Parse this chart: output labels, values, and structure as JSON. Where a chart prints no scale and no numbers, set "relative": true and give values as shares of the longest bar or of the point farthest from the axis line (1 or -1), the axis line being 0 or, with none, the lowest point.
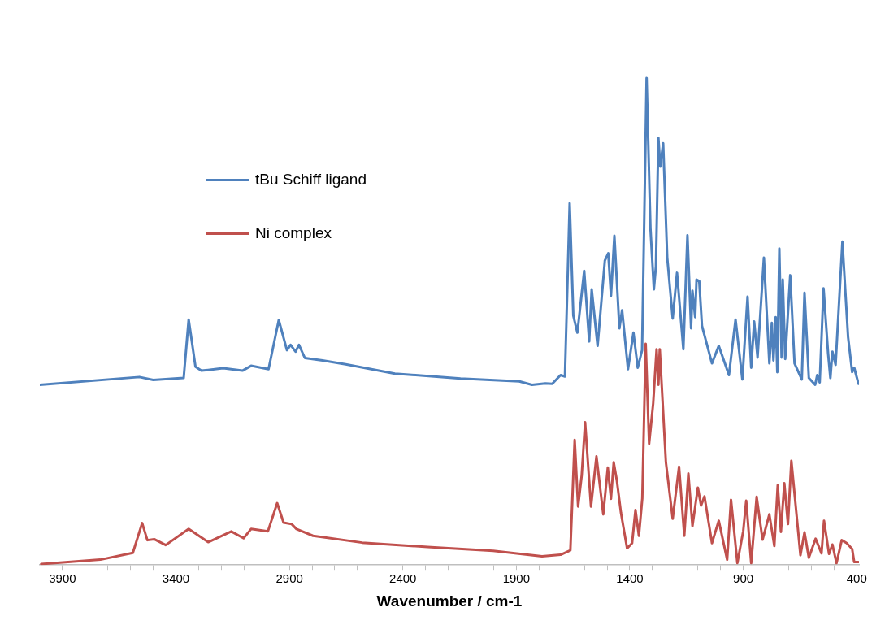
{
  "chart_data": {
    "type": "line",
    "xlabel": "Wavenumber / cm-1",
    "relative": true,
    "legend": "top left",
    "grid": false,
    "marker": "none",
    "line_style": "solid",
    "xlim": [
      4000,
      390
    ],
    "xticks": [
      3900,
      {
        "value": 3800,
        "label": null
      },
      {
        "value": 3700,
        "label": null
      },
      {
        "value": 3600,
        "label": null
      },
      {
        "value": 3500,
        "label": null
      },
      3400,
      {
        "value": 3300,
        "label": null
      },
      {
        "value": 3200,
        "label": null
      },
      {
        "value": 3100,
        "label": null
      },
      {
        "value": 3000,
        "label": null
      },
      2900,
      {
        "value": 2800,
        "label": null
      },
      {
        "value": 2700,
        "label": null
      },
      {
        "value": 2600,
        "label": null
      },
      {
        "value": 2500,
        "label": null
      },
      2400,
      {
        "value": 2300,
        "label": null
      },
      {
        "value": 2200,
        "label": null
      },
      {
        "value": 2100,
        "label": null
      },
      {
        "value": 2000,
        "label": null
      },
      1900,
      {
        "value": 1800,
        "label": null
      },
      {
        "value": 1700,
        "label": null
      },
      {
        "value": 1600,
        "label": null
      },
      {
        "value": 1500,
        "label": null
      },
      1400,
      {
        "value": 1300,
        "label": null
      },
      {
        "value": 1200,
        "label": null
      },
      {
        "value": 1100,
        "label": null
      },
      {
        "value": 1000,
        "label": null
      },
      900,
      {
        "value": 800,
        "label": null
      },
      {
        "value": 700,
        "label": null
      },
      {
        "value": 600,
        "label": null
      },
      {
        "value": 500,
        "label": null
      },
      400
    ],
    "series": [
      {
        "name": "tBu Schiff ligand",
        "color": "#4f81bd",
        "x": [
          4000,
          3561,
          3500,
          3366,
          3344,
          3314,
          3288,
          3192,
          3107,
          3069,
          2992,
          2947,
          2911,
          2895,
          2873,
          2858,
          2832,
          2754,
          2652,
          2435,
          2146,
          1887,
          1831,
          1772,
          1742,
          1705,
          1686,
          1665,
          1649,
          1631,
          1601,
          1579,
          1568,
          1542,
          1510,
          1495,
          1483,
          1468,
          1446,
          1434,
          1408,
          1384,
          1365,
          1346,
          1326,
          1309,
          1294,
          1285,
          1274,
          1266,
          1253,
          1235,
          1211,
          1192,
          1164,
          1146,
          1130,
          1124,
          1112,
          1106,
          1094,
          1082,
          1038,
          1008,
          963,
          934,
          904,
          881,
          865,
          852,
          837,
          809,
          785,
          774,
          767,
          757,
          750,
          741,
          731,
          726,
          715,
          693,
          674,
          642,
          630,
          611,
          583,
          574,
          563,
          546,
          526,
          516,
          507,
          493,
          463,
          438,
          420,
          411,
          392
        ],
        "values": [
          0.37,
          0.386,
          0.38,
          0.384,
          0.504,
          0.407,
          0.399,
          0.404,
          0.399,
          0.409,
          0.402,
          0.503,
          0.441,
          0.452,
          0.438,
          0.452,
          0.425,
          0.42,
          0.412,
          0.393,
          0.383,
          0.377,
          0.37,
          0.373,
          0.372,
          0.39,
          0.387,
          0.743,
          0.512,
          0.477,
          0.604,
          0.459,
          0.566,
          0.45,
          0.625,
          0.64,
          0.553,
          0.676,
          0.486,
          0.523,
          0.402,
          0.477,
          0.405,
          0.441,
          1.0,
          0.691,
          0.566,
          0.613,
          0.877,
          0.818,
          0.866,
          0.631,
          0.506,
          0.6,
          0.443,
          0.677,
          0.486,
          0.563,
          0.509,
          0.586,
          0.583,
          0.491,
          0.414,
          0.45,
          0.39,
          0.504,
          0.381,
          0.551,
          0.405,
          0.5,
          0.426,
          0.631,
          0.414,
          0.497,
          0.42,
          0.509,
          0.396,
          0.65,
          0.426,
          0.586,
          0.423,
          0.595,
          0.414,
          0.381,
          0.559,
          0.384,
          0.37,
          0.39,
          0.375,
          0.568,
          0.434,
          0.384,
          0.438,
          0.411,
          0.664,
          0.468,
          0.396,
          0.405,
          0.372
        ]
      },
      {
        "name": "Ni complex",
        "color": "#c0504d",
        "x": [
          3994,
          3733,
          3590,
          3549,
          3526,
          3496,
          3445,
          3344,
          3258,
          3156,
          3102,
          3069,
          2995,
          2954,
          2926,
          2890,
          2869,
          2796,
          2580,
          2291,
          2002,
          1787,
          1705,
          1662,
          1643,
          1628,
          1612,
          1597,
          1571,
          1547,
          1517,
          1497,
          1483,
          1471,
          1457,
          1439,
          1412,
          1390,
          1375,
          1360,
          1345,
          1330,
          1315,
          1297,
          1282,
          1274,
          1268,
          1241,
          1211,
          1183,
          1160,
          1142,
          1124,
          1100,
          1086,
          1071,
          1038,
          1008,
          971,
          954,
          926,
          900,
          887,
          865,
          841,
          815,
          785,
          763,
          748,
          734,
          719,
          703,
          688,
          648,
          630,
          611,
          581,
          555,
          544,
          522,
          507,
          489,
          466,
          444,
          420,
          411,
          392
        ],
        "values": [
          0.002,
          0.011,
          0.025,
          0.086,
          0.051,
          0.053,
          0.041,
          0.074,
          0.047,
          0.069,
          0.055,
          0.074,
          0.069,
          0.127,
          0.087,
          0.084,
          0.074,
          0.06,
          0.046,
          0.037,
          0.029,
          0.018,
          0.021,
          0.03,
          0.257,
          0.12,
          0.184,
          0.293,
          0.12,
          0.223,
          0.104,
          0.2,
          0.136,
          0.211,
          0.173,
          0.107,
          0.034,
          0.045,
          0.113,
          0.06,
          0.137,
          0.454,
          0.249,
          0.332,
          0.443,
          0.37,
          0.443,
          0.211,
          0.095,
          0.202,
          0.06,
          0.188,
          0.08,
          0.159,
          0.122,
          0.141,
          0.045,
          0.091,
          0.011,
          0.134,
          0.004,
          0.07,
          0.132,
          0.004,
          0.14,
          0.052,
          0.104,
          0.039,
          0.164,
          0.068,
          0.168,
          0.084,
          0.214,
          0.02,
          0.067,
          0.015,
          0.054,
          0.024,
          0.091,
          0.023,
          0.042,
          0.004,
          0.051,
          0.045,
          0.033,
          0.006,
          0.006
        ]
      }
    ]
  }
}
